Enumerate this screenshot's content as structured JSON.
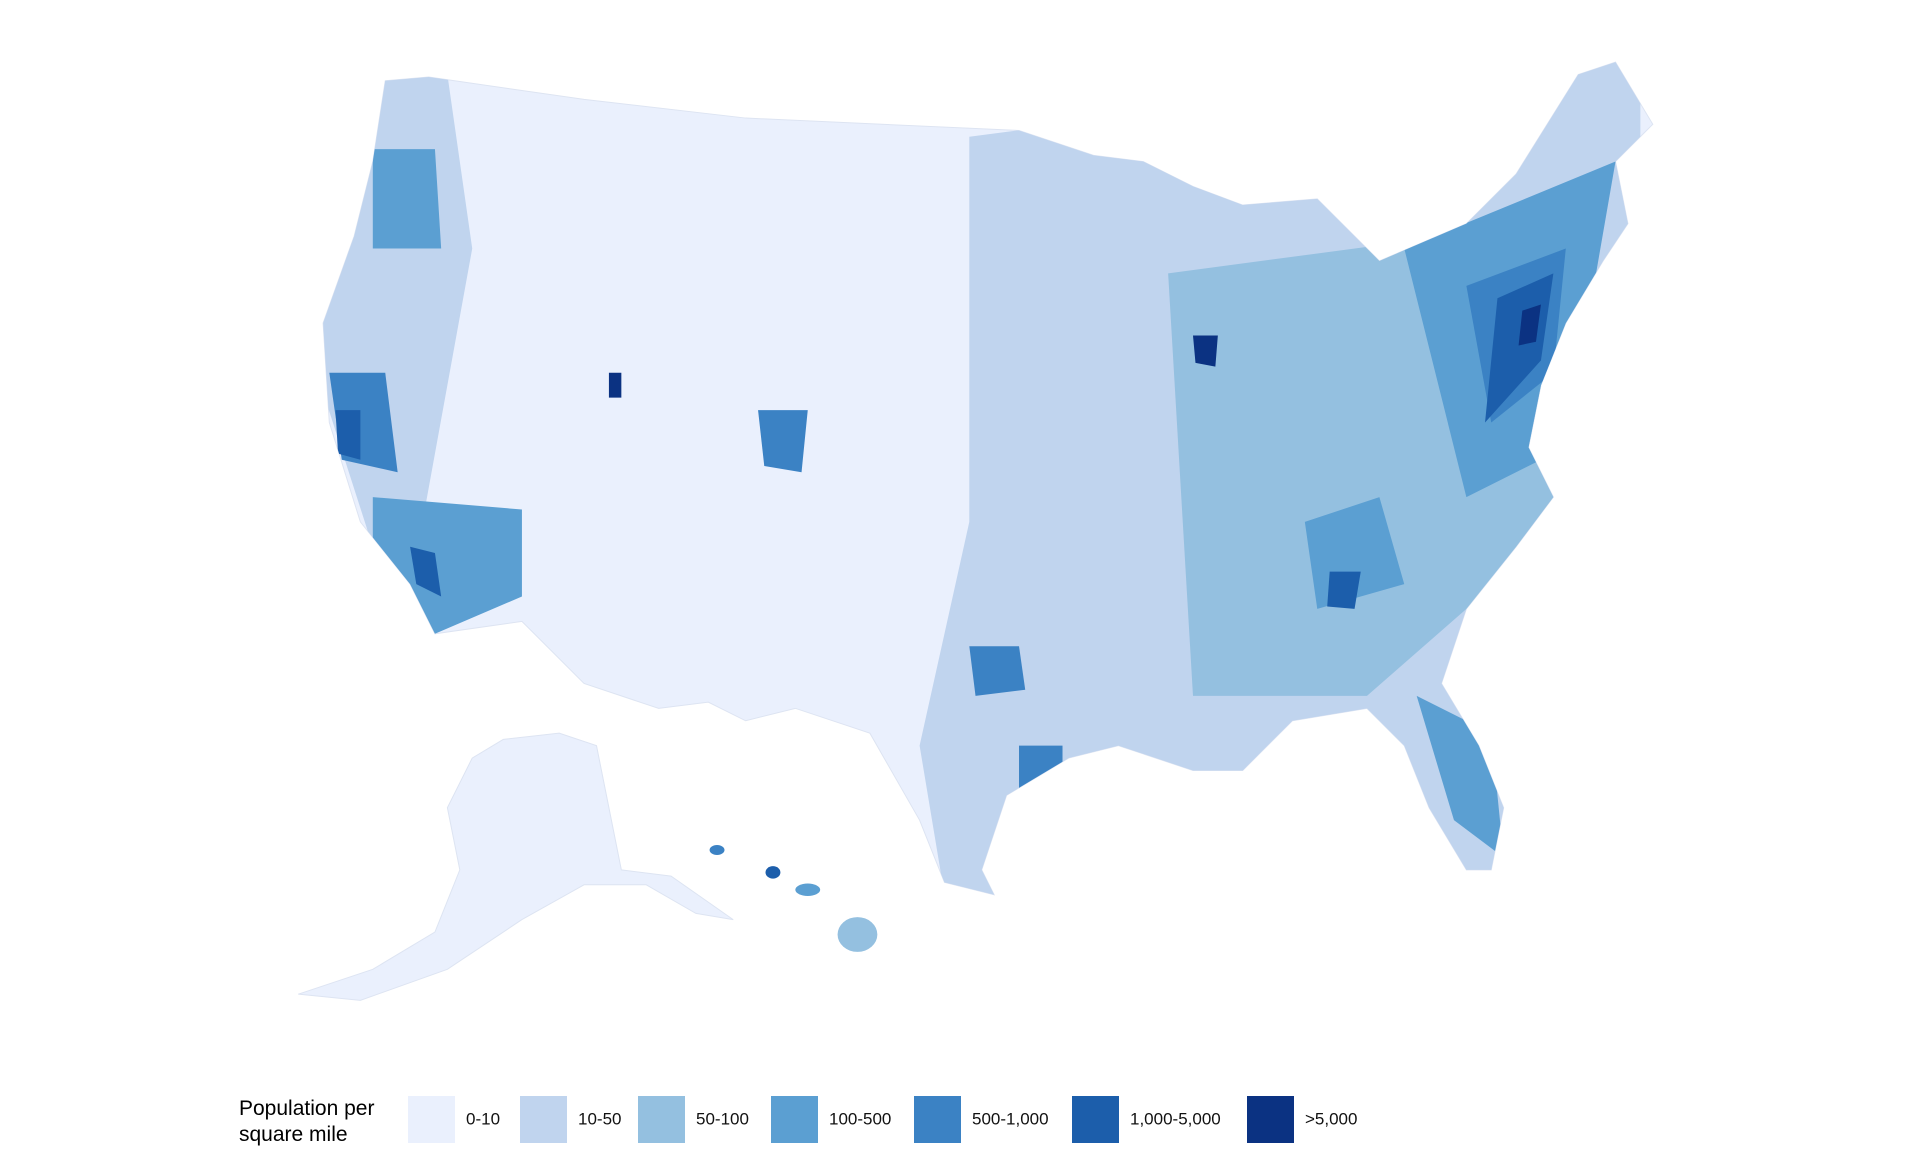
{
  "legend": {
    "title_lines": [
      "Population per",
      "square mile"
    ],
    "items": [
      {
        "label": "0-10",
        "color": "#eaf0fd"
      },
      {
        "label": "10-50",
        "color": "#c0d4ee"
      },
      {
        "label": "50-100",
        "color": "#94c0e0"
      },
      {
        "label": "100-500",
        "color": "#5b9fd2"
      },
      {
        "label": "500-1,000",
        "color": "#3b82c4"
      },
      {
        "label": "1,000-5,000",
        "color": "#1c5eab"
      },
      {
        "label": ">5,000",
        "color": "#0b3282"
      }
    ]
  }
}
